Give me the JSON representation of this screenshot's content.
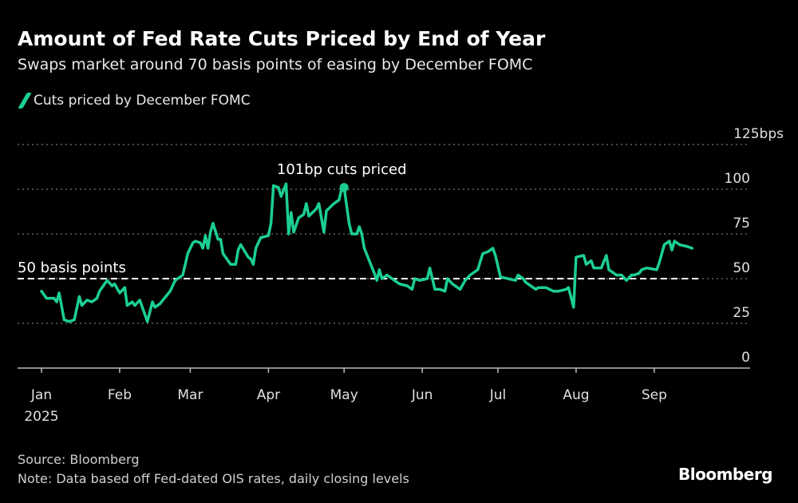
{
  "title": "Amount of Fed Rate Cuts Priced by End of Year",
  "subtitle": "Swaps market around 70 basis points of easing by December FOMC",
  "source": "Source: Bloomberg",
  "note": "Note: Data based off Fed-dated OIS rates, daily closing levels",
  "logo": "Bloomberg",
  "chart_data": {
    "type": "line",
    "title": "Amount of Fed Rate Cuts Priced by End of Year",
    "xlabel": "",
    "ylabel": "bps",
    "ylim": [
      0,
      125
    ],
    "yticks": [
      {
        "v": 0,
        "label": "0"
      },
      {
        "v": 25,
        "label": "25"
      },
      {
        "v": 50,
        "label": "50"
      },
      {
        "v": 75,
        "label": "75"
      },
      {
        "v": 100,
        "label": "100"
      },
      {
        "v": 125,
        "label": "125bps"
      }
    ],
    "xticks": [
      {
        "day": 0,
        "label": "Jan"
      },
      {
        "day": 31,
        "label": "Feb"
      },
      {
        "day": 59,
        "label": "Mar"
      },
      {
        "day": 90,
        "label": "Apr"
      },
      {
        "day": 120,
        "label": "May"
      },
      {
        "day": 151,
        "label": "Jun"
      },
      {
        "day": 181,
        "label": "Jul"
      },
      {
        "day": 212,
        "label": "Aug"
      },
      {
        "day": 243,
        "label": "Sep"
      }
    ],
    "year_label": "2025",
    "xlim_days": [
      -9,
      282
    ],
    "color": "#1ccf91",
    "reference_line": {
      "value": 50,
      "label": "50 basis points"
    },
    "annotation": {
      "day": 120,
      "value": 101,
      "label": "101bp cuts priced"
    },
    "series": [
      {
        "name": "Cuts priced by December FOMC",
        "points": [
          [
            0,
            43
          ],
          [
            2,
            39
          ],
          [
            5,
            39
          ],
          [
            6,
            37
          ],
          [
            7,
            42
          ],
          [
            9,
            27
          ],
          [
            11,
            26
          ],
          [
            13,
            27
          ],
          [
            15,
            40
          ],
          [
            16,
            35
          ],
          [
            18,
            38
          ],
          [
            20,
            37
          ],
          [
            22,
            39
          ],
          [
            23,
            43
          ],
          [
            26,
            49
          ],
          [
            28,
            46
          ],
          [
            29,
            47
          ],
          [
            31,
            42
          ],
          [
            33,
            45
          ],
          [
            34,
            35
          ],
          [
            36,
            37
          ],
          [
            37,
            35
          ],
          [
            39,
            38
          ],
          [
            42,
            26
          ],
          [
            44,
            37
          ],
          [
            45,
            34
          ],
          [
            47,
            36
          ],
          [
            51,
            43
          ],
          [
            53,
            49
          ],
          [
            56,
            52
          ],
          [
            58,
            64
          ],
          [
            60,
            70
          ],
          [
            61,
            71
          ],
          [
            63,
            70
          ],
          [
            64,
            67
          ],
          [
            65,
            74
          ],
          [
            66,
            67
          ],
          [
            67,
            76
          ],
          [
            68,
            81
          ],
          [
            70,
            72
          ],
          [
            71,
            72
          ],
          [
            72,
            64
          ],
          [
            75,
            58
          ],
          [
            77,
            58
          ],
          [
            78,
            66
          ],
          [
            79,
            69
          ],
          [
            82,
            62
          ],
          [
            83,
            61
          ],
          [
            84,
            58
          ],
          [
            85,
            67
          ],
          [
            87,
            73
          ],
          [
            90,
            74
          ],
          [
            91,
            81
          ],
          [
            92,
            102
          ],
          [
            94,
            101
          ],
          [
            95,
            96
          ],
          [
            97,
            103
          ],
          [
            98,
            75
          ],
          [
            99,
            87
          ],
          [
            100,
            76
          ],
          [
            102,
            84
          ],
          [
            104,
            86
          ],
          [
            105,
            92
          ],
          [
            106,
            85
          ],
          [
            109,
            89
          ],
          [
            110,
            92
          ],
          [
            112,
            76
          ],
          [
            113,
            88
          ],
          [
            116,
            92
          ],
          [
            118,
            94
          ],
          [
            119,
            100
          ],
          [
            120,
            101
          ],
          [
            122,
            81
          ],
          [
            123,
            75
          ],
          [
            125,
            75
          ],
          [
            126,
            79
          ],
          [
            127,
            75
          ],
          [
            128,
            67
          ],
          [
            132,
            53
          ],
          [
            133,
            49
          ],
          [
            134,
            55
          ],
          [
            135,
            50
          ],
          [
            137,
            52
          ],
          [
            139,
            50
          ],
          [
            142,
            47
          ],
          [
            145,
            46
          ],
          [
            147,
            44
          ],
          [
            148,
            50
          ],
          [
            150,
            49
          ],
          [
            153,
            50
          ],
          [
            154,
            56
          ],
          [
            155,
            50
          ],
          [
            156,
            44
          ],
          [
            158,
            44
          ],
          [
            160,
            43
          ],
          [
            161,
            50
          ],
          [
            163,
            47
          ],
          [
            166,
            44
          ],
          [
            168,
            49
          ],
          [
            170,
            52
          ],
          [
            173,
            55
          ],
          [
            175,
            64
          ],
          [
            177,
            65
          ],
          [
            179,
            67
          ],
          [
            180,
            63
          ],
          [
            182,
            51
          ],
          [
            185,
            50
          ],
          [
            188,
            49
          ],
          [
            189,
            52
          ],
          [
            191,
            50
          ],
          [
            192,
            48
          ],
          [
            195,
            45
          ],
          [
            196,
            44
          ],
          [
            197,
            45
          ],
          [
            200,
            45
          ],
          [
            203,
            43
          ],
          [
            205,
            43
          ],
          [
            208,
            44
          ],
          [
            209,
            45
          ],
          [
            211,
            34
          ],
          [
            212,
            62
          ],
          [
            215,
            63
          ],
          [
            216,
            58
          ],
          [
            218,
            60
          ],
          [
            219,
            56
          ],
          [
            222,
            56
          ],
          [
            224,
            63
          ],
          [
            225,
            55
          ],
          [
            228,
            52
          ],
          [
            230,
            52
          ],
          [
            232,
            49
          ],
          [
            234,
            52
          ],
          [
            235,
            52
          ],
          [
            237,
            53
          ],
          [
            238,
            55
          ],
          [
            240,
            56
          ],
          [
            244,
            55
          ],
          [
            245,
            59
          ],
          [
            247,
            69
          ],
          [
            249,
            71
          ],
          [
            250,
            66
          ],
          [
            251,
            71
          ],
          [
            253,
            69
          ],
          [
            256,
            68
          ],
          [
            258,
            67
          ]
        ]
      }
    ]
  }
}
